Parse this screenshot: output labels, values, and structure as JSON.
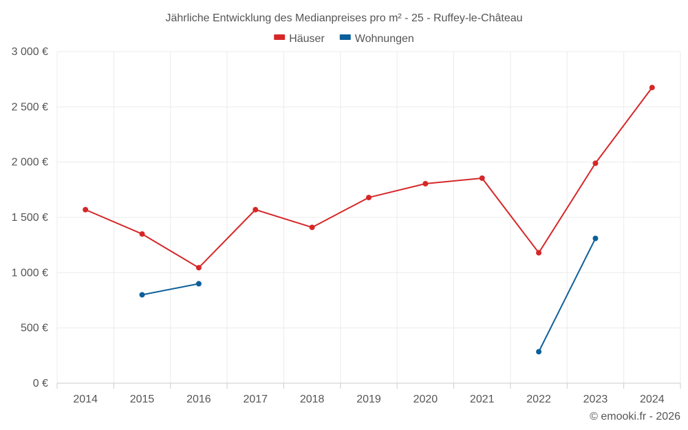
{
  "colors": {
    "houses": "#d62728",
    "apartments": "#0b5f9a",
    "grid": "#ebebeb",
    "text": "#555555"
  },
  "credit": "© emooki.fr - 2026",
  "chart_data": {
    "type": "line",
    "title": "Jährliche Entwicklung des Medianpreises pro m² - 25 - Ruffey-le-Château",
    "xlabel": "",
    "ylabel": "",
    "x": [
      "2014",
      "2015",
      "2016",
      "2017",
      "2018",
      "2019",
      "2020",
      "2021",
      "2022",
      "2023",
      "2024"
    ],
    "ylim": [
      0,
      3000
    ],
    "yticks": [
      0,
      500,
      1000,
      1500,
      2000,
      2500,
      3000
    ],
    "ytick_labels": [
      "0 €",
      "500 €",
      "1 000 €",
      "1 500 €",
      "2 000 €",
      "2 500 €",
      "3 000 €"
    ],
    "grid": true,
    "legend_position": "top-center",
    "series": [
      {
        "name": "Häuser",
        "color": "#d62728",
        "values": [
          1570,
          1350,
          1045,
          1570,
          1410,
          1680,
          1805,
          1855,
          1180,
          1990,
          2675
        ]
      },
      {
        "name": "Wohnungen",
        "color": "#0b5f9a",
        "values": [
          null,
          800,
          900,
          null,
          null,
          null,
          null,
          null,
          285,
          1310,
          null
        ]
      }
    ]
  }
}
